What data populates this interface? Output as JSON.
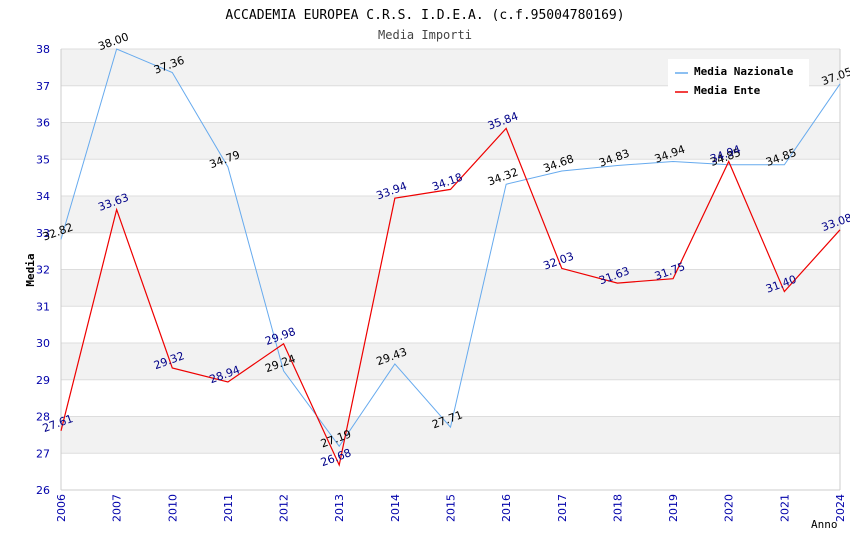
{
  "chart_data": {
    "type": "line",
    "title": "ACCADEMIA EUROPEA C.R.S. I.D.E.A. (c.f.95004780169)",
    "subtitle": "Media Importi",
    "xlabel": "Anno",
    "ylabel": "Media",
    "ylim": [
      26,
      38
    ],
    "yticks": [
      "26",
      "27",
      "28",
      "29",
      "30",
      "31",
      "32",
      "33",
      "34",
      "35",
      "36",
      "37",
      "38"
    ],
    "categories": [
      "2006",
      "2007",
      "2010",
      "2011",
      "2012",
      "2013",
      "2014",
      "2015",
      "2016",
      "2017",
      "2018",
      "2019",
      "2020",
      "2021",
      "2024"
    ],
    "grid": "horizontal bands",
    "legend_position": "top-right",
    "series": [
      {
        "name": "Media Nazionale",
        "color": "#66aaee",
        "label_color": "#000000",
        "values": [
          32.82,
          38.0,
          37.36,
          34.79,
          29.24,
          27.19,
          29.43,
          27.71,
          34.32,
          34.68,
          34.83,
          34.94,
          34.85,
          34.85,
          37.05
        ],
        "labels": [
          "32.82",
          "38.00",
          "37.36",
          "34.79",
          "29.24",
          "27.19",
          "29.43",
          "27.71",
          "34.32",
          "34.68",
          "34.83",
          "34.94",
          "34.85",
          "34.85",
          "37.05"
        ]
      },
      {
        "name": "Media Ente",
        "color": "#ee0000",
        "label_color": "#000088",
        "values": [
          27.61,
          33.63,
          29.32,
          28.94,
          29.98,
          26.68,
          33.94,
          34.18,
          35.84,
          32.03,
          31.63,
          31.75,
          34.94,
          31.4,
          33.08
        ],
        "labels": [
          "27.61",
          "33.63",
          "29.32",
          "28.94",
          "29.98",
          "26.68",
          "33.94",
          "34.18",
          "35.84",
          "32.03",
          "31.63",
          "31.75",
          "34.94",
          "31.40",
          "33.08"
        ]
      }
    ]
  }
}
